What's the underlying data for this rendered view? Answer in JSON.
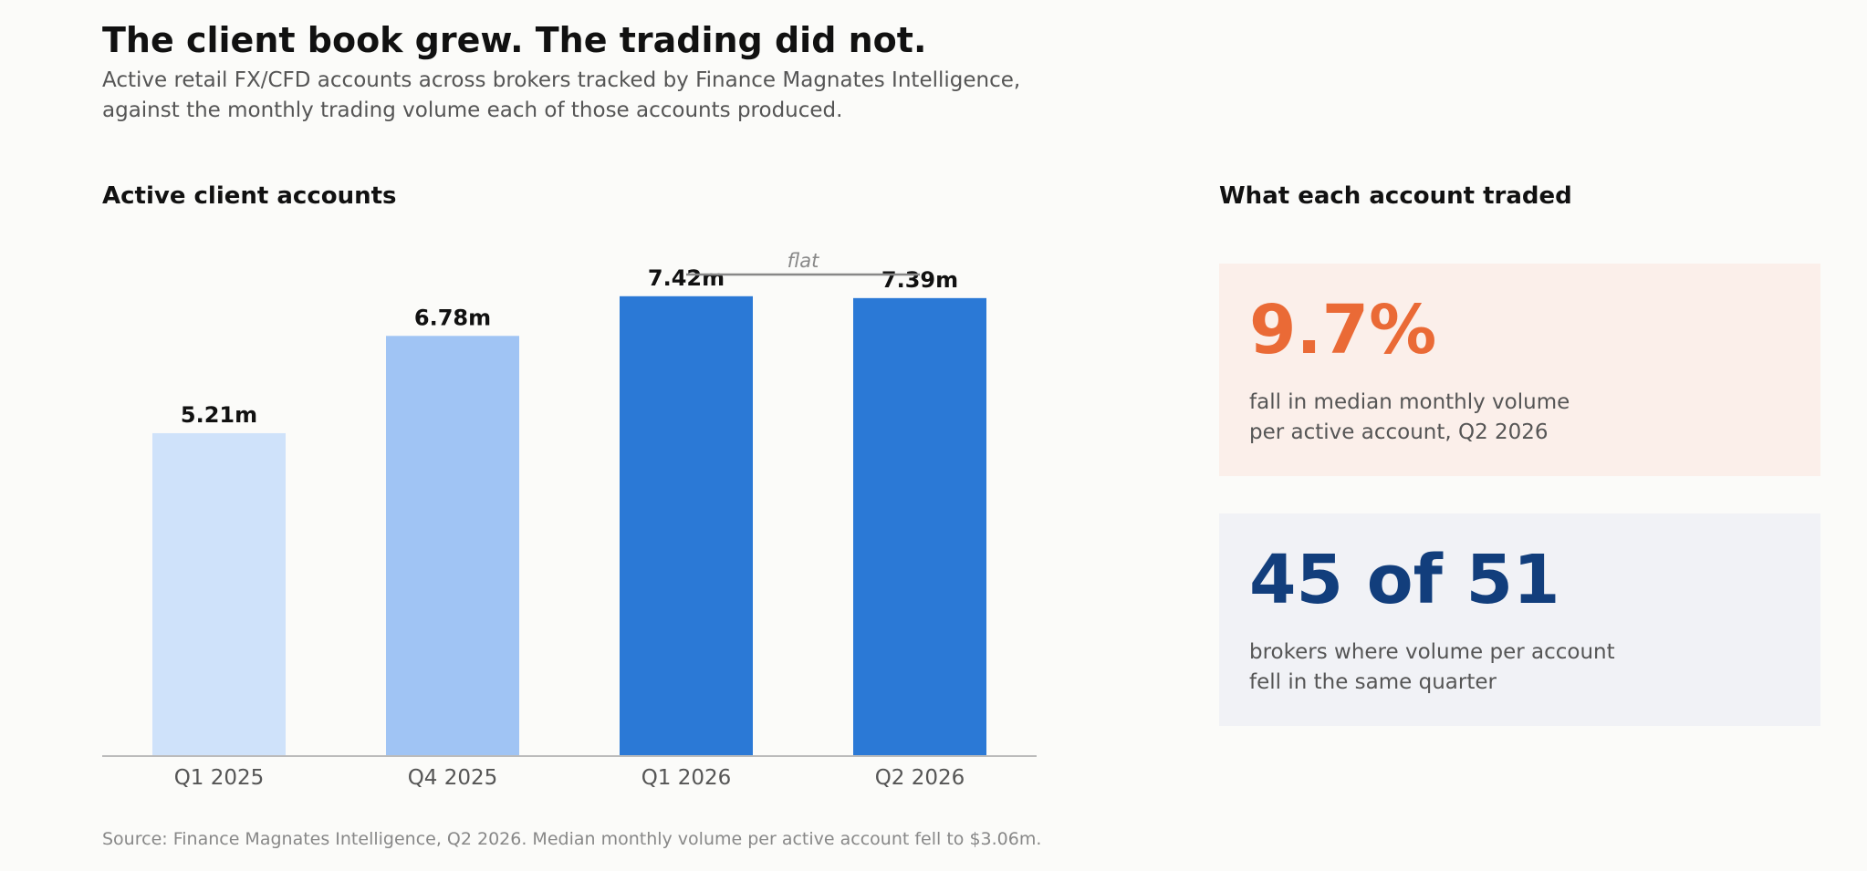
{
  "header": {
    "title": "The client book grew. The trading did not.",
    "subtitle_line1": "Active retail FX/CFD accounts across brokers tracked by Finance Magnates Intelligence,",
    "subtitle_line2": "against the monthly trading volume each of those accounts produced."
  },
  "chart_data": {
    "type": "bar",
    "title": "Active client accounts",
    "categories": [
      "Q1 2025",
      "Q4 2025",
      "Q1 2026",
      "Q2 2026"
    ],
    "values": [
      5.21,
      6.78,
      7.42,
      7.39
    ],
    "value_labels": [
      "5.21m",
      "6.78m",
      "7.42m",
      "7.39m"
    ],
    "unit": "m",
    "bar_colors": [
      "#cfe2fa",
      "#a0c4f4",
      "#2b79d6",
      "#2b79d6"
    ],
    "ylim": [
      0,
      8.3
    ],
    "grid": false,
    "legend": "none",
    "annotation": {
      "text": "flat",
      "from_category": "Q1 2026",
      "to_category": "Q2 2026"
    }
  },
  "stats": {
    "title": "What each account traded",
    "cards": [
      {
        "value": "9.7%",
        "line1": "fall in median monthly volume",
        "line2": "per active account, Q2 2026",
        "color": "#ea6a36",
        "background": "#fbefea"
      },
      {
        "value": "45 of 51",
        "line1": "brokers where volume per account",
        "line2": "fell in the same quarter",
        "color": "#123e7c",
        "background": "#f1f2f6"
      }
    ]
  },
  "footer": {
    "source": "Source: Finance Magnates Intelligence, Q2 2026. Median monthly volume per active account fell to $3.06m."
  }
}
